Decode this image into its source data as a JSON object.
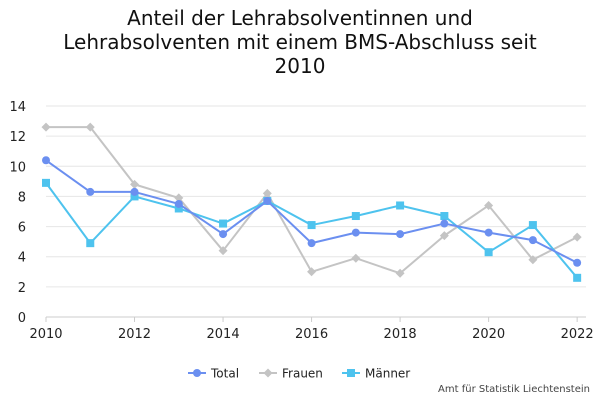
{
  "chart_data": {
    "type": "line",
    "title_lines": [
      "Anteil der Lehrabsolventinnen und",
      "Lehrabsolventen mit einem BMS-Abschluss seit",
      "2010"
    ],
    "x": [
      2010,
      2011,
      2012,
      2013,
      2014,
      2015,
      2016,
      2017,
      2018,
      2019,
      2020,
      2021,
      2022
    ],
    "xlim": [
      2010,
      2022.2
    ],
    "ylim": [
      0,
      14
    ],
    "xticks": [
      "2010",
      "2012",
      "2014",
      "2016",
      "2018",
      "2020",
      "2022"
    ],
    "yticks": [
      "0",
      "2",
      "4",
      "6",
      "8",
      "10",
      "12",
      "14"
    ],
    "grid": true,
    "legend_position": "bottom",
    "series": [
      {
        "name": "Total",
        "color": "#6b8ff0",
        "marker": "circle",
        "values": [
          10.4,
          8.3,
          8.3,
          7.5,
          5.5,
          7.7,
          4.9,
          5.6,
          5.5,
          6.2,
          5.6,
          5.1,
          3.6
        ]
      },
      {
        "name": "Frauen",
        "color": "#c4c4c4",
        "marker": "diamond",
        "values": [
          12.6,
          12.6,
          8.8,
          7.9,
          4.4,
          8.2,
          3.0,
          3.9,
          2.9,
          5.4,
          7.4,
          3.8,
          5.3
        ]
      },
      {
        "name": "Männer",
        "color": "#4ec3ee",
        "marker": "square",
        "values": [
          8.9,
          4.9,
          8.0,
          7.2,
          6.2,
          7.7,
          6.1,
          6.7,
          7.4,
          6.7,
          4.3,
          6.1,
          2.6
        ]
      }
    ]
  },
  "source": "Amt für Statistik Liechtenstein"
}
